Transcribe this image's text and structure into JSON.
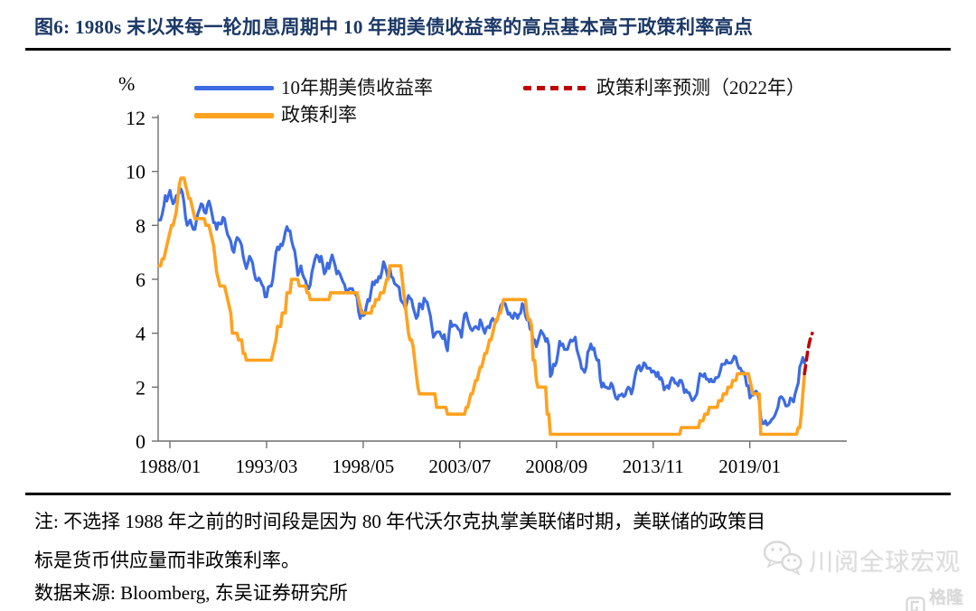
{
  "title": "图6: 1980s 末以来每一轮加息周期中 10 年期美债收益率的高点基本高于政策利率高点",
  "legend": {
    "series1": "10年期美债收益率",
    "series2": "政策利率",
    "series3": "政策利率预测（2022年）"
  },
  "axis": {
    "unit_label": "%"
  },
  "note_lines": [
    "注: 不选择 1988 年之前的时间段是因为 80 年代沃尔克执掌美联储时期，美联储的政策目",
    "标是货币供应量而非政策利率。"
  ],
  "source": "数据来源: Bloomberg, 东吴证券研究所",
  "watermark": {
    "account_name": "川阅全球宏观",
    "logo_text": "格隆汇"
  },
  "colors": {
    "title_navy": "#1b3866",
    "treasury_blue": "#3d6be2",
    "policy_orange": "#ffa21f",
    "forecast_red": "#bf0000",
    "axis_gray": "#6f6f6f",
    "watermark_gray": "#dcdcdc"
  },
  "chart_data": {
    "type": "line",
    "title": "10年期美债收益率 vs 政策利率 (1988-2022, 含2022年政策利率预测)",
    "x_start": "1988/01",
    "x_frequency": "monthly",
    "x_tick_labels": [
      "1988/01",
      "1993/03",
      "1998/05",
      "2003/07",
      "2008/09",
      "2013/11",
      "2019/01"
    ],
    "x_tick_month_offsets": [
      0,
      62,
      124,
      186,
      248,
      310,
      372
    ],
    "ylabel": "%",
    "ylim": [
      0,
      12
    ],
    "y_ticks": [
      0,
      2,
      4,
      6,
      8,
      10,
      12
    ],
    "grid": false,
    "legend_position": "top",
    "series": [
      {
        "name": "10年期美债收益率",
        "color": "#3d6be2",
        "width": 3.2,
        "dashed": false,
        "start_month_offset": 0,
        "values": [
          8.2,
          8.2,
          8.4,
          8.7,
          9.1,
          8.9,
          9.1,
          9.3,
          9.0,
          8.8,
          8.9,
          9.1,
          9.1,
          9.2,
          9.35,
          9.2,
          8.85,
          8.3,
          8.0,
          8.1,
          8.2,
          8.0,
          7.85,
          7.85,
          8.2,
          8.45,
          8.6,
          8.8,
          8.75,
          8.5,
          8.45,
          8.75,
          8.9,
          8.7,
          8.4,
          8.1,
          8.1,
          7.85,
          8.1,
          8.05,
          8.05,
          8.3,
          8.25,
          7.9,
          7.65,
          7.55,
          7.4,
          7.1,
          7.0,
          7.35,
          7.55,
          7.5,
          7.4,
          7.25,
          6.85,
          6.6,
          6.4,
          6.6,
          6.85,
          6.75,
          6.6,
          6.25,
          6.0,
          5.95,
          6.05,
          5.95,
          5.8,
          5.7,
          5.35,
          5.35,
          5.7,
          5.75,
          5.75,
          6.0,
          6.5,
          7.0,
          7.2,
          7.1,
          7.3,
          7.25,
          7.45,
          7.75,
          7.95,
          7.8,
          7.8,
          7.45,
          7.2,
          7.05,
          6.65,
          6.15,
          6.3,
          6.5,
          6.2,
          6.05,
          5.95,
          5.7,
          5.65,
          5.8,
          6.25,
          6.5,
          6.75,
          6.9,
          6.85,
          6.65,
          6.85,
          6.55,
          6.2,
          6.3,
          6.6,
          6.4,
          6.7,
          6.9,
          6.7,
          6.5,
          6.2,
          6.3,
          6.2,
          6.05,
          5.9,
          5.8,
          5.55,
          5.55,
          5.65,
          5.65,
          5.65,
          5.5,
          5.45,
          5.35,
          4.8,
          4.55,
          4.85,
          4.65,
          4.7,
          5.0,
          5.25,
          5.2,
          5.55,
          5.9,
          5.8,
          5.95,
          5.9,
          6.1,
          6.05,
          6.3,
          6.65,
          6.5,
          6.25,
          6.0,
          6.45,
          6.1,
          6.05,
          5.85,
          5.8,
          5.75,
          5.7,
          5.25,
          5.15,
          5.1,
          4.9,
          5.15,
          5.4,
          5.3,
          5.25,
          4.95,
          4.75,
          4.55,
          4.65,
          5.1,
          5.05,
          4.9,
          5.3,
          5.2,
          5.15,
          4.9,
          4.65,
          4.25,
          3.85,
          3.95,
          4.05,
          4.05,
          4.05,
          3.9,
          3.8,
          3.95,
          3.55,
          3.35,
          4.0,
          4.45,
          4.25,
          4.3,
          4.3,
          4.25,
          4.15,
          4.1,
          3.85,
          4.35,
          4.7,
          4.75,
          4.5,
          4.3,
          4.15,
          4.1,
          4.2,
          4.25,
          4.2,
          4.15,
          4.5,
          4.35,
          4.15,
          4.0,
          4.2,
          4.25,
          4.2,
          4.45,
          4.55,
          4.45,
          4.4,
          4.55,
          4.7,
          5.0,
          5.1,
          5.1,
          5.1,
          4.9,
          4.7,
          4.75,
          4.6,
          4.55,
          4.75,
          4.7,
          4.55,
          4.7,
          4.75,
          5.1,
          5.0,
          4.65,
          4.5,
          4.55,
          4.15,
          4.1,
          3.75,
          3.75,
          3.5,
          3.7,
          3.9,
          4.1,
          4.0,
          3.9,
          3.7,
          3.8,
          3.55,
          2.4,
          2.5,
          2.85,
          2.8,
          2.95,
          3.3,
          3.7,
          3.55,
          3.6,
          3.4,
          3.4,
          3.4,
          3.6,
          3.75,
          3.7,
          3.75,
          3.85,
          3.4,
          3.2,
          3.0,
          2.7,
          2.65,
          2.55,
          2.75,
          3.3,
          3.4,
          3.6,
          3.4,
          3.45,
          3.15,
          3.0,
          3.0,
          2.3,
          2.0,
          2.15,
          2.0,
          2.0,
          1.95,
          1.95,
          2.15,
          2.05,
          1.8,
          1.6,
          1.55,
          1.7,
          1.7,
          1.75,
          1.65,
          1.7,
          1.9,
          2.0,
          1.95,
          1.75,
          1.95,
          2.3,
          2.6,
          2.75,
          2.8,
          2.6,
          2.7,
          2.9,
          2.85,
          2.7,
          2.7,
          2.7,
          2.55,
          2.6,
          2.55,
          2.4,
          2.55,
          2.3,
          2.35,
          2.2,
          1.9,
          2.0,
          2.05,
          1.95,
          2.2,
          2.35,
          2.3,
          2.15,
          2.15,
          2.05,
          2.25,
          2.25,
          2.1,
          1.8,
          1.9,
          1.8,
          1.8,
          1.65,
          1.5,
          1.55,
          1.65,
          1.75,
          2.15,
          2.5,
          2.45,
          2.4,
          2.5,
          2.3,
          2.3,
          2.2,
          2.3,
          2.2,
          2.2,
          2.35,
          2.35,
          2.4,
          2.6,
          2.85,
          2.85,
          2.85,
          3.0,
          2.9,
          2.9,
          2.9,
          3.0,
          3.15,
          3.1,
          2.85,
          2.7,
          2.7,
          2.55,
          2.55,
          2.4,
          2.05,
          2.05,
          1.6,
          1.7,
          1.7,
          1.8,
          1.85,
          1.75,
          1.5,
          0.85,
          0.65,
          0.65,
          0.75,
          0.6,
          0.65,
          0.7,
          0.8,
          0.85,
          0.95,
          1.1,
          1.25,
          1.6,
          1.65,
          1.6,
          1.5,
          1.3,
          1.3,
          1.35,
          1.6,
          1.55,
          1.45,
          1.75,
          1.95,
          2.15,
          2.75,
          2.9,
          3.1,
          2.9
        ]
      },
      {
        "name": "政策利率",
        "color": "#ffa21f",
        "width": 3.6,
        "dashed": false,
        "start_month_offset": 0,
        "values": [
          6.5,
          6.5,
          6.75,
          6.75,
          7.0,
          7.25,
          7.5,
          7.75,
          8.0,
          8.0,
          8.25,
          8.5,
          9.0,
          9.5,
          9.75,
          9.75,
          9.75,
          9.5,
          9.25,
          9.0,
          9.0,
          8.75,
          8.5,
          8.25,
          8.25,
          8.25,
          8.25,
          8.25,
          8.25,
          8.25,
          8.0,
          8.0,
          8.0,
          7.75,
          7.5,
          7.25,
          6.75,
          6.25,
          6.0,
          5.75,
          5.75,
          5.75,
          5.75,
          5.5,
          5.25,
          5.0,
          4.75,
          4.0,
          4.0,
          4.0,
          4.0,
          3.75,
          3.75,
          3.75,
          3.25,
          3.25,
          3.0,
          3.0,
          3.0,
          3.0,
          3.0,
          3.0,
          3.0,
          3.0,
          3.0,
          3.0,
          3.0,
          3.0,
          3.0,
          3.0,
          3.0,
          3.0,
          3.0,
          3.25,
          3.5,
          3.75,
          4.25,
          4.25,
          4.25,
          4.75,
          4.75,
          4.75,
          5.5,
          5.5,
          5.5,
          6.0,
          6.0,
          6.0,
          6.0,
          6.0,
          5.75,
          5.75,
          5.75,
          5.75,
          5.75,
          5.5,
          5.5,
          5.25,
          5.25,
          5.25,
          5.25,
          5.25,
          5.25,
          5.25,
          5.25,
          5.25,
          5.25,
          5.25,
          5.25,
          5.25,
          5.5,
          5.5,
          5.5,
          5.5,
          5.5,
          5.5,
          5.5,
          5.5,
          5.5,
          5.5,
          5.5,
          5.5,
          5.5,
          5.5,
          5.5,
          5.5,
          5.5,
          5.5,
          5.25,
          5.0,
          4.75,
          4.75,
          4.75,
          4.75,
          4.75,
          4.75,
          4.75,
          5.0,
          5.0,
          5.25,
          5.25,
          5.25,
          5.5,
          5.5,
          5.5,
          5.75,
          6.0,
          6.0,
          6.5,
          6.5,
          6.5,
          6.5,
          6.5,
          6.5,
          6.5,
          6.5,
          6.0,
          5.5,
          5.0,
          4.5,
          4.0,
          3.75,
          3.75,
          3.5,
          3.0,
          2.5,
          2.0,
          1.75,
          1.75,
          1.75,
          1.75,
          1.75,
          1.75,
          1.75,
          1.75,
          1.75,
          1.75,
          1.75,
          1.25,
          1.25,
          1.25,
          1.25,
          1.25,
          1.25,
          1.25,
          1.0,
          1.0,
          1.0,
          1.0,
          1.0,
          1.0,
          1.0,
          1.0,
          1.0,
          1.0,
          1.0,
          1.0,
          1.25,
          1.25,
          1.5,
          1.75,
          1.75,
          2.0,
          2.25,
          2.25,
          2.5,
          2.75,
          2.75,
          3.0,
          3.25,
          3.25,
          3.5,
          3.75,
          3.75,
          4.0,
          4.25,
          4.5,
          4.5,
          4.75,
          4.75,
          5.0,
          5.25,
          5.25,
          5.25,
          5.25,
          5.25,
          5.25,
          5.25,
          5.25,
          5.25,
          5.25,
          5.25,
          5.25,
          5.25,
          5.25,
          5.25,
          4.75,
          4.5,
          4.5,
          4.25,
          3.0,
          3.0,
          2.25,
          2.0,
          2.0,
          2.0,
          2.0,
          2.0,
          2.0,
          1.0,
          1.0,
          0.25,
          0.25,
          0.25,
          0.25,
          0.25,
          0.25,
          0.25,
          0.25,
          0.25,
          0.25,
          0.25,
          0.25,
          0.25,
          0.25,
          0.25,
          0.25,
          0.25,
          0.25,
          0.25,
          0.25,
          0.25,
          0.25,
          0.25,
          0.25,
          0.25,
          0.25,
          0.25,
          0.25,
          0.25,
          0.25,
          0.25,
          0.25,
          0.25,
          0.25,
          0.25,
          0.25,
          0.25,
          0.25,
          0.25,
          0.25,
          0.25,
          0.25,
          0.25,
          0.25,
          0.25,
          0.25,
          0.25,
          0.25,
          0.25,
          0.25,
          0.25,
          0.25,
          0.25,
          0.25,
          0.25,
          0.25,
          0.25,
          0.25,
          0.25,
          0.25,
          0.25,
          0.25,
          0.25,
          0.25,
          0.25,
          0.25,
          0.25,
          0.25,
          0.25,
          0.25,
          0.25,
          0.25,
          0.25,
          0.25,
          0.25,
          0.25,
          0.25,
          0.25,
          0.25,
          0.25,
          0.25,
          0.25,
          0.25,
          0.25,
          0.5,
          0.5,
          0.5,
          0.5,
          0.5,
          0.5,
          0.5,
          0.5,
          0.5,
          0.5,
          0.5,
          0.5,
          0.75,
          0.75,
          0.75,
          1.0,
          1.0,
          1.0,
          1.25,
          1.25,
          1.25,
          1.25,
          1.25,
          1.25,
          1.5,
          1.5,
          1.5,
          1.75,
          1.75,
          1.75,
          2.0,
          2.0,
          2.0,
          2.25,
          2.25,
          2.25,
          2.5,
          2.5,
          2.5,
          2.5,
          2.5,
          2.5,
          2.5,
          2.5,
          2.25,
          2.0,
          1.75,
          1.75,
          1.75,
          1.75,
          1.75,
          0.25,
          0.25,
          0.25,
          0.25,
          0.25,
          0.25,
          0.25,
          0.25,
          0.25,
          0.25,
          0.25,
          0.25,
          0.25,
          0.25,
          0.25,
          0.25,
          0.25,
          0.25,
          0.25,
          0.25,
          0.25,
          0.25,
          0.25,
          0.25,
          0.5,
          0.5,
          1.0,
          1.75,
          2.5
        ]
      },
      {
        "name": "政策利率预测（2022年）",
        "color": "#bf0000",
        "width": 3.6,
        "dashed": true,
        "start_month_offset": 414,
        "values": [
          2.5,
          2.9,
          3.3,
          3.6,
          3.85,
          4.0
        ]
      }
    ]
  }
}
